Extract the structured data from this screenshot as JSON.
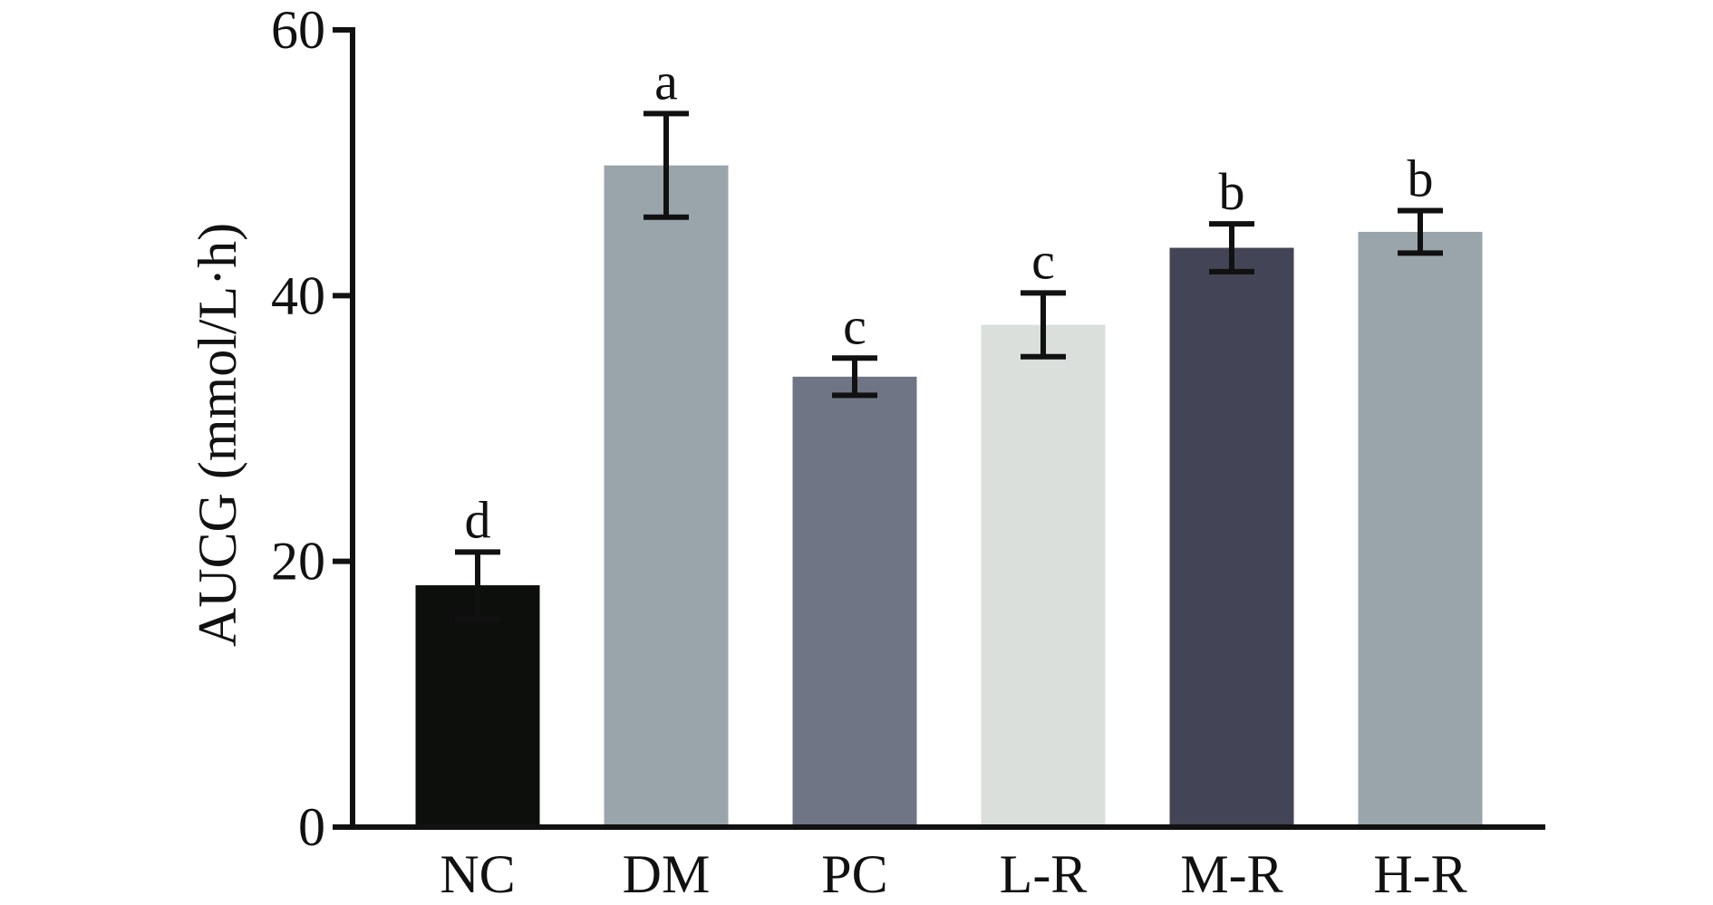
{
  "chart_data": {
    "type": "bar",
    "y_label": "AUCG (mmol/L·h)",
    "categories": [
      "NC",
      "DM",
      "PC",
      "L-R",
      "M-R",
      "H-R"
    ],
    "values": [
      18.2,
      49.8,
      33.9,
      37.8,
      43.6,
      44.8
    ],
    "errors": [
      2.5,
      3.9,
      1.4,
      2.4,
      1.8,
      1.6
    ],
    "letters": [
      "d",
      "a",
      "c",
      "c",
      "b",
      "b"
    ],
    "colors": [
      "#0d0f0d",
      "#9aa4ab",
      "#6f7585",
      "#dadfdc",
      "#444457",
      "#9aa4ab"
    ],
    "ylim": [
      0,
      60
    ],
    "yticks": [
      0,
      20,
      40,
      60
    ],
    "grid": false
  }
}
